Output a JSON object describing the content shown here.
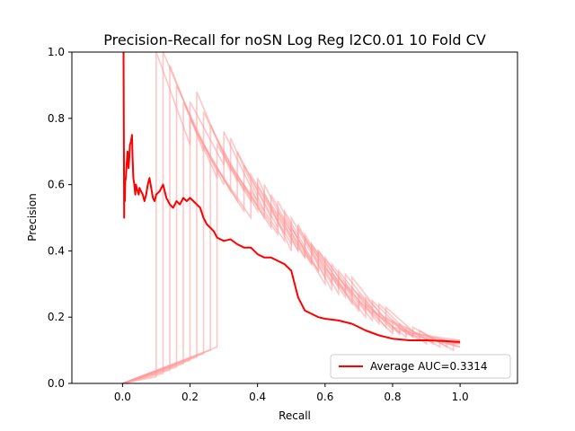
{
  "chart_data": {
    "type": "line",
    "title": "Precision-Recall for noSN Log Reg l2C0.01 10 Fold CV",
    "xlabel": "Recall",
    "ylabel": "Precision",
    "xlim": [
      -0.15,
      1.17
    ],
    "ylim": [
      0.0,
      1.0
    ],
    "xticks": [
      "0.0",
      "0.2",
      "0.4",
      "0.6",
      "0.8",
      "1.0"
    ],
    "yticks": [
      "0.0",
      "0.2",
      "0.4",
      "0.6",
      "0.8",
      "1.0"
    ],
    "legend_position": "lower-right",
    "grid": false,
    "main_color": "#ff0000",
    "fold_color": "#ff9999",
    "series": [
      {
        "name": "Average AUC=0.3314",
        "x": [
          0.003,
          0.005,
          0.005,
          0.007,
          0.008,
          0.01,
          0.012,
          0.015,
          0.018,
          0.02,
          0.022,
          0.025,
          0.028,
          0.03,
          0.032,
          0.035,
          0.038,
          0.04,
          0.042,
          0.045,
          0.048,
          0.05,
          0.055,
          0.06,
          0.065,
          0.07,
          0.075,
          0.08,
          0.085,
          0.09,
          0.095,
          0.1,
          0.11,
          0.12,
          0.13,
          0.14,
          0.15,
          0.16,
          0.17,
          0.18,
          0.19,
          0.2,
          0.21,
          0.22,
          0.23,
          0.24,
          0.25,
          0.26,
          0.27,
          0.28,
          0.3,
          0.32,
          0.34,
          0.36,
          0.38,
          0.4,
          0.42,
          0.44,
          0.46,
          0.48,
          0.5,
          0.52,
          0.54,
          0.56,
          0.58,
          0.6,
          0.64,
          0.68,
          0.72,
          0.76,
          0.8,
          0.85,
          0.9,
          0.95,
          1.0
        ],
        "y": [
          1.0,
          0.5,
          0.6,
          0.55,
          0.61,
          0.62,
          0.66,
          0.7,
          0.65,
          0.68,
          0.72,
          0.73,
          0.75,
          0.68,
          0.62,
          0.6,
          0.57,
          0.6,
          0.59,
          0.58,
          0.57,
          0.59,
          0.58,
          0.57,
          0.55,
          0.57,
          0.6,
          0.62,
          0.59,
          0.56,
          0.55,
          0.57,
          0.58,
          0.6,
          0.56,
          0.54,
          0.53,
          0.55,
          0.54,
          0.56,
          0.55,
          0.56,
          0.55,
          0.54,
          0.53,
          0.5,
          0.48,
          0.47,
          0.46,
          0.44,
          0.43,
          0.435,
          0.42,
          0.41,
          0.41,
          0.39,
          0.38,
          0.38,
          0.37,
          0.36,
          0.34,
          0.26,
          0.22,
          0.21,
          0.2,
          0.195,
          0.19,
          0.18,
          0.16,
          0.145,
          0.135,
          0.13,
          0.13,
          0.128,
          0.125
        ]
      }
    ],
    "fold_curves": [
      {
        "x": [
          0.0,
          0.1,
          0.1,
          0.2,
          0.2,
          0.3,
          0.3,
          0.4,
          0.4,
          0.5,
          0.5,
          0.6,
          0.6,
          0.7,
          0.7,
          0.8,
          0.8,
          1.0
        ],
        "y": [
          0.0,
          0.02,
          1.0,
          0.72,
          0.85,
          0.66,
          0.76,
          0.55,
          0.62,
          0.4,
          0.47,
          0.3,
          0.35,
          0.22,
          0.25,
          0.15,
          0.17,
          0.12
        ]
      },
      {
        "x": [
          0.0,
          0.12,
          0.12,
          0.22,
          0.22,
          0.32,
          0.32,
          0.42,
          0.42,
          0.52,
          0.52,
          0.62,
          0.62,
          0.72,
          0.72,
          0.82,
          0.82,
          1.0
        ],
        "y": [
          0.0,
          0.03,
          1.0,
          0.76,
          0.88,
          0.64,
          0.74,
          0.52,
          0.6,
          0.4,
          0.48,
          0.28,
          0.33,
          0.2,
          0.24,
          0.15,
          0.16,
          0.12
        ]
      },
      {
        "x": [
          0.0,
          0.14,
          0.14,
          0.24,
          0.24,
          0.34,
          0.34,
          0.44,
          0.44,
          0.54,
          0.54,
          0.64,
          0.64,
          0.74,
          0.74,
          0.84,
          0.84,
          1.0
        ],
        "y": [
          0.0,
          0.04,
          0.96,
          0.7,
          0.82,
          0.61,
          0.7,
          0.5,
          0.57,
          0.38,
          0.45,
          0.27,
          0.32,
          0.19,
          0.22,
          0.14,
          0.15,
          0.11
        ]
      },
      {
        "x": [
          0.0,
          0.16,
          0.16,
          0.26,
          0.26,
          0.36,
          0.36,
          0.46,
          0.46,
          0.56,
          0.56,
          0.66,
          0.66,
          0.76,
          0.76,
          0.86,
          0.86,
          1.0
        ],
        "y": [
          0.0,
          0.05,
          0.9,
          0.68,
          0.78,
          0.58,
          0.66,
          0.47,
          0.55,
          0.36,
          0.42,
          0.26,
          0.3,
          0.18,
          0.21,
          0.14,
          0.15,
          0.13
        ]
      },
      {
        "x": [
          0.0,
          0.18,
          0.18,
          0.28,
          0.28,
          0.38,
          0.38,
          0.48,
          0.48,
          0.58,
          0.58,
          0.68,
          0.68,
          0.78,
          0.78,
          0.88,
          0.88,
          1.0
        ],
        "y": [
          0.0,
          0.06,
          0.85,
          0.62,
          0.72,
          0.55,
          0.63,
          0.45,
          0.52,
          0.34,
          0.4,
          0.24,
          0.29,
          0.17,
          0.2,
          0.13,
          0.14,
          0.12
        ]
      },
      {
        "x": [
          0.0,
          0.2,
          0.2,
          0.3,
          0.3,
          0.4,
          0.4,
          0.5,
          0.5,
          0.6,
          0.6,
          0.7,
          0.7,
          0.8,
          0.8,
          0.9,
          0.9,
          1.0
        ],
        "y": [
          0.0,
          0.07,
          0.8,
          0.6,
          0.7,
          0.52,
          0.6,
          0.42,
          0.5,
          0.32,
          0.38,
          0.23,
          0.27,
          0.16,
          0.19,
          0.12,
          0.14,
          0.11
        ]
      },
      {
        "x": [
          0.0,
          0.22,
          0.22,
          0.32,
          0.32,
          0.42,
          0.42,
          0.52,
          0.52,
          0.62,
          0.62,
          0.72,
          0.72,
          0.82,
          0.82,
          0.92,
          0.92,
          1.0
        ],
        "y": [
          0.0,
          0.08,
          0.76,
          0.58,
          0.66,
          0.5,
          0.57,
          0.4,
          0.47,
          0.3,
          0.36,
          0.22,
          0.26,
          0.15,
          0.18,
          0.12,
          0.13,
          0.12
        ]
      },
      {
        "x": [
          0.0,
          0.24,
          0.24,
          0.34,
          0.34,
          0.44,
          0.44,
          0.54,
          0.54,
          0.64,
          0.64,
          0.74,
          0.74,
          0.84,
          0.84,
          0.94,
          0.94,
          1.0
        ],
        "y": [
          0.0,
          0.09,
          0.72,
          0.55,
          0.63,
          0.47,
          0.54,
          0.38,
          0.44,
          0.29,
          0.34,
          0.21,
          0.25,
          0.15,
          0.17,
          0.11,
          0.13,
          0.13
        ]
      },
      {
        "x": [
          0.0,
          0.26,
          0.26,
          0.36,
          0.36,
          0.46,
          0.46,
          0.56,
          0.56,
          0.66,
          0.66,
          0.76,
          0.76,
          0.86,
          0.86,
          0.96,
          0.96,
          1.0
        ],
        "y": [
          0.0,
          0.1,
          0.68,
          0.52,
          0.6,
          0.45,
          0.52,
          0.36,
          0.42,
          0.28,
          0.33,
          0.2,
          0.24,
          0.14,
          0.17,
          0.11,
          0.12,
          0.12
        ]
      },
      {
        "x": [
          0.0,
          0.28,
          0.28,
          0.38,
          0.38,
          0.48,
          0.48,
          0.58,
          0.58,
          0.68,
          0.68,
          0.78,
          0.78,
          0.88,
          0.88,
          0.98,
          0.98,
          1.0
        ],
        "y": [
          0.0,
          0.11,
          0.65,
          0.5,
          0.58,
          0.43,
          0.5,
          0.34,
          0.4,
          0.27,
          0.32,
          0.19,
          0.23,
          0.14,
          0.16,
          0.1,
          0.12,
          0.12
        ]
      }
    ]
  }
}
